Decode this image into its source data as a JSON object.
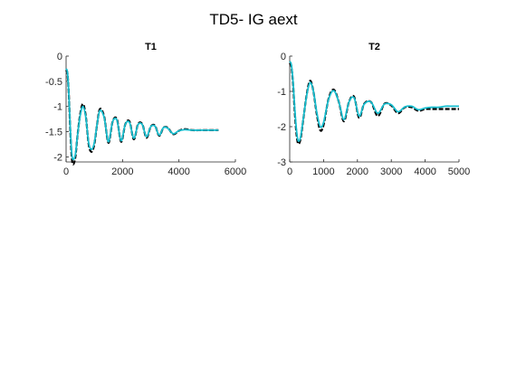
{
  "figure_title": "TD5- IG aext",
  "colors": {
    "background": "#ffffff",
    "axis": "#262626",
    "series_primary": "#000000",
    "series_secondary": "#17becf"
  },
  "chart_data": [
    {
      "type": "line",
      "title": "T1",
      "xlim": [
        0,
        6000
      ],
      "ylim": [
        -2.1,
        0
      ],
      "xticks": [
        0,
        2000,
        4000,
        6000
      ],
      "xtick_labels": [
        "0",
        "2000",
        "4000",
        "6000"
      ],
      "yticks": [
        0,
        -0.5,
        -1,
        -1.5,
        -2
      ],
      "ytick_labels": [
        "0",
        "-0.5",
        "-1",
        "-1.5",
        "-2"
      ],
      "grid": false,
      "series": [
        {
          "color": "#000000",
          "style": "dashed",
          "x": [
            0,
            50,
            100,
            150,
            200,
            250,
            330,
            400,
            500,
            600,
            700,
            800,
            900,
            1000,
            1100,
            1200,
            1350,
            1500,
            1650,
            1800,
            1950,
            2100,
            2250,
            2400,
            2550,
            2700,
            2850,
            3000,
            3150,
            3300,
            3450,
            3600,
            3800,
            4000,
            4200,
            4500,
            4800,
            5100,
            5400
          ],
          "y": [
            -0.28,
            -0.35,
            -0.8,
            -1.5,
            -2.0,
            -2.15,
            -2.0,
            -1.6,
            -1.15,
            -0.95,
            -1.2,
            -1.75,
            -1.9,
            -1.75,
            -1.35,
            -1.05,
            -1.2,
            -1.72,
            -1.3,
            -1.25,
            -1.7,
            -1.35,
            -1.3,
            -1.65,
            -1.35,
            -1.35,
            -1.62,
            -1.4,
            -1.38,
            -1.58,
            -1.42,
            -1.42,
            -1.55,
            -1.48,
            -1.45,
            -1.47,
            -1.47,
            -1.47,
            -1.47
          ]
        },
        {
          "color": "#17becf",
          "style": "solid",
          "x": [
            0,
            50,
            100,
            150,
            200,
            250,
            330,
            400,
            500,
            600,
            700,
            800,
            900,
            1000,
            1100,
            1200,
            1350,
            1500,
            1650,
            1800,
            1950,
            2100,
            2250,
            2400,
            2550,
            2700,
            2850,
            3000,
            3150,
            3300,
            3450,
            3600,
            3800,
            4000,
            4200,
            4500,
            4800,
            5100,
            5400
          ],
          "y": [
            -0.25,
            -0.33,
            -0.78,
            -1.45,
            -1.92,
            -2.05,
            -1.95,
            -1.6,
            -1.18,
            -1.0,
            -1.22,
            -1.72,
            -1.85,
            -1.72,
            -1.35,
            -1.08,
            -1.22,
            -1.7,
            -1.3,
            -1.27,
            -1.68,
            -1.35,
            -1.32,
            -1.63,
            -1.36,
            -1.36,
            -1.6,
            -1.4,
            -1.39,
            -1.57,
            -1.42,
            -1.43,
            -1.54,
            -1.48,
            -1.46,
            -1.47,
            -1.47,
            -1.47,
            -1.47
          ]
        }
      ]
    },
    {
      "type": "line",
      "title": "T2",
      "xlim": [
        0,
        5000
      ],
      "ylim": [
        -3,
        0
      ],
      "xticks": [
        0,
        1000,
        2000,
        3000,
        4000,
        5000
      ],
      "xtick_labels": [
        "0",
        "1000",
        "2000",
        "3000",
        "4000",
        "5000"
      ],
      "yticks": [
        0,
        -1,
        -2,
        -3
      ],
      "ytick_labels": [
        "0",
        "-1",
        "-2",
        "-3"
      ],
      "grid": false,
      "series": [
        {
          "color": "#000000",
          "style": "dashed",
          "x": [
            0,
            50,
            100,
            150,
            200,
            250,
            320,
            400,
            500,
            600,
            700,
            800,
            900,
            1000,
            1150,
            1300,
            1450,
            1600,
            1750,
            1900,
            2050,
            2200,
            2400,
            2600,
            2800,
            3000,
            3200,
            3400,
            3600,
            3800,
            4000,
            4200,
            4400,
            4600,
            4800,
            5000
          ],
          "y": [
            -0.2,
            -0.3,
            -0.8,
            -1.6,
            -2.2,
            -2.48,
            -2.35,
            -1.8,
            -1.1,
            -0.7,
            -1.0,
            -1.65,
            -2.1,
            -1.95,
            -1.2,
            -0.95,
            -1.3,
            -1.85,
            -1.3,
            -1.15,
            -1.75,
            -1.35,
            -1.3,
            -1.7,
            -1.35,
            -1.4,
            -1.62,
            -1.45,
            -1.45,
            -1.55,
            -1.5,
            -1.5,
            -1.5,
            -1.5,
            -1.5,
            -1.5
          ]
        },
        {
          "color": "#17becf",
          "style": "solid",
          "x": [
            0,
            50,
            100,
            150,
            200,
            250,
            320,
            400,
            500,
            600,
            700,
            800,
            900,
            1000,
            1150,
            1300,
            1450,
            1600,
            1750,
            1900,
            2050,
            2200,
            2400,
            2600,
            2800,
            3000,
            3200,
            3400,
            3600,
            3800,
            4000,
            4200,
            4400,
            4600,
            4800,
            5000
          ],
          "y": [
            -0.15,
            -0.25,
            -0.75,
            -1.5,
            -2.1,
            -2.4,
            -2.3,
            -1.78,
            -1.12,
            -0.75,
            -1.0,
            -1.6,
            -2.0,
            -1.88,
            -1.22,
            -0.98,
            -1.3,
            -1.8,
            -1.3,
            -1.18,
            -1.7,
            -1.36,
            -1.3,
            -1.62,
            -1.36,
            -1.38,
            -1.58,
            -1.44,
            -1.42,
            -1.52,
            -1.47,
            -1.45,
            -1.45,
            -1.42,
            -1.42,
            -1.42
          ]
        }
      ]
    }
  ]
}
